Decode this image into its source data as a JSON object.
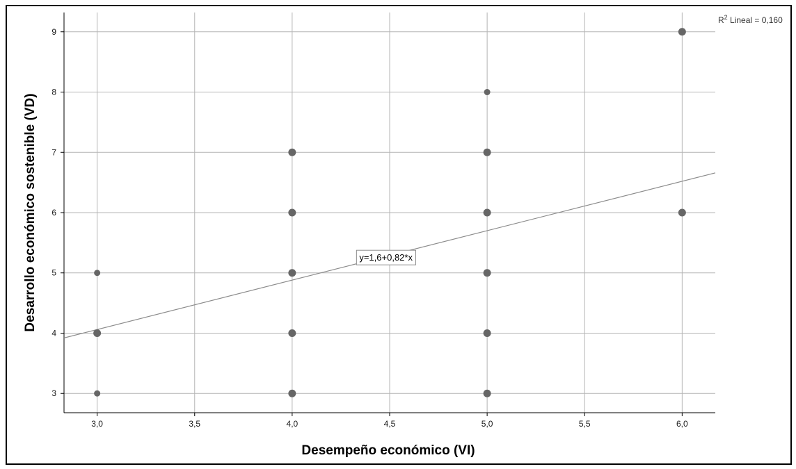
{
  "chart_data": {
    "type": "scatter",
    "title": "",
    "xlabel": "Desempeño económico (VI)",
    "ylabel": "Desarrollo económico sostenible (VD)",
    "xlim": [
      2.83,
      6.17
    ],
    "ylim": [
      2.68,
      9.32
    ],
    "x_ticks": [
      3.0,
      3.5,
      4.0,
      4.5,
      5.0,
      5.5,
      6.0
    ],
    "x_tick_labels": [
      "3,0",
      "3,5",
      "4,0",
      "4,5",
      "5,0",
      "5,5",
      "6,0"
    ],
    "y_ticks": [
      3,
      4,
      5,
      6,
      7,
      8,
      9
    ],
    "y_tick_labels": [
      "3",
      "4",
      "5",
      "6",
      "7",
      "8",
      "9"
    ],
    "grid": true,
    "points": [
      {
        "x": 3,
        "y": 3,
        "size": "small"
      },
      {
        "x": 3,
        "y": 4,
        "size": "large"
      },
      {
        "x": 3,
        "y": 5,
        "size": "small"
      },
      {
        "x": 4,
        "y": 3,
        "size": "large"
      },
      {
        "x": 4,
        "y": 4,
        "size": "large"
      },
      {
        "x": 4,
        "y": 5,
        "size": "large"
      },
      {
        "x": 4,
        "y": 6,
        "size": "large"
      },
      {
        "x": 4,
        "y": 7,
        "size": "large"
      },
      {
        "x": 5,
        "y": 3,
        "size": "large"
      },
      {
        "x": 5,
        "y": 4,
        "size": "large"
      },
      {
        "x": 5,
        "y": 5,
        "size": "large"
      },
      {
        "x": 5,
        "y": 6,
        "size": "large"
      },
      {
        "x": 5,
        "y": 7,
        "size": "large"
      },
      {
        "x": 5,
        "y": 8,
        "size": "small"
      },
      {
        "x": 6,
        "y": 6,
        "size": "large"
      },
      {
        "x": 6,
        "y": 9,
        "size": "large"
      }
    ],
    "fit_line": {
      "intercept": 1.6,
      "slope": 0.82,
      "label": "y=1,6+0,82*x",
      "label_anchor_x": 4.33,
      "label_anchor_y": 5.26
    },
    "r2_label": {
      "prefix": "R",
      "superscript": "2",
      "text": " Lineal = 0,160"
    },
    "colors": {
      "point": "#666666",
      "grid": "#b4b4b4",
      "fit": "#8c8c8c",
      "frame": "#000000"
    }
  }
}
